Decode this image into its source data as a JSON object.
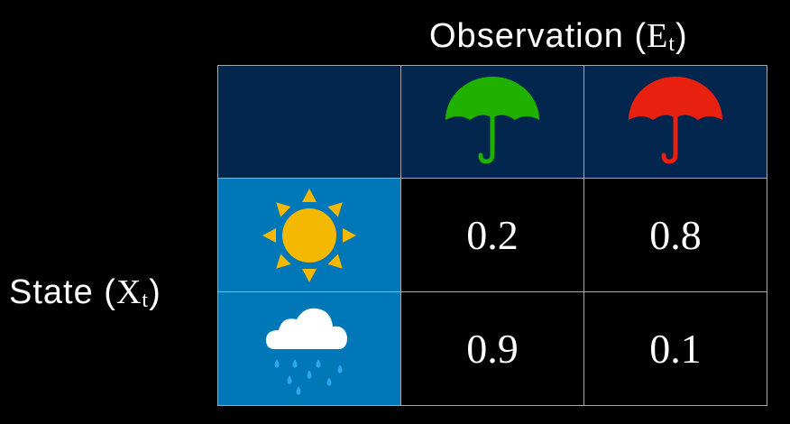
{
  "title": {
    "text": "Observation (",
    "var": "E",
    "sub": "t",
    "close": ")"
  },
  "row_label": {
    "text": "State (",
    "var": "X",
    "sub": "t",
    "close": ")"
  },
  "columns": [
    {
      "icon": "umbrella-icon",
      "color": "#1fb000"
    },
    {
      "icon": "umbrella-icon",
      "color": "#e8200f"
    }
  ],
  "rows": [
    {
      "icon": "sun-icon",
      "values": [
        "0.2",
        "0.8"
      ]
    },
    {
      "icon": "rain-cloud-icon",
      "values": [
        "0.9",
        "0.1"
      ]
    }
  ],
  "colors": {
    "header": "#02264d",
    "state": "#0077b6",
    "sun": "#f5b800",
    "cloud": "#ffffff",
    "rain": "#29a8f0"
  }
}
